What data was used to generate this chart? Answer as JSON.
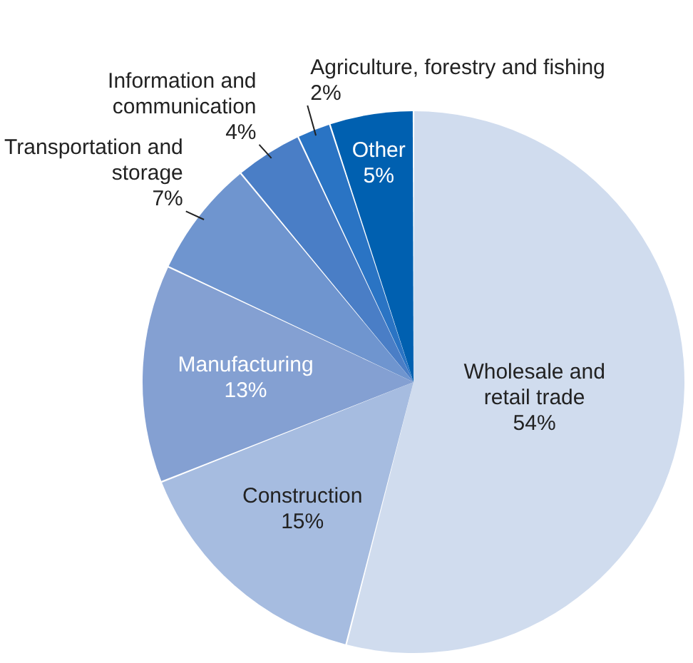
{
  "chart_data": {
    "type": "pie",
    "categories": [
      "Wholesale and retail trade",
      "Construction",
      "Manufacturing",
      "Transportation and storage",
      "Information and communication",
      "Agriculture, forestry and fishing",
      "Other"
    ],
    "values": [
      54,
      15,
      13,
      7,
      4,
      2,
      5
    ],
    "colors": [
      "#d0dcee",
      "#a6bce0",
      "#84a0d2",
      "#6f95cf",
      "#4a7ec6",
      "#2a74c4",
      "#0060b0"
    ],
    "value_labels": [
      "54%",
      "15%",
      "13%",
      "7%",
      "4%",
      "2%",
      "5%"
    ]
  }
}
